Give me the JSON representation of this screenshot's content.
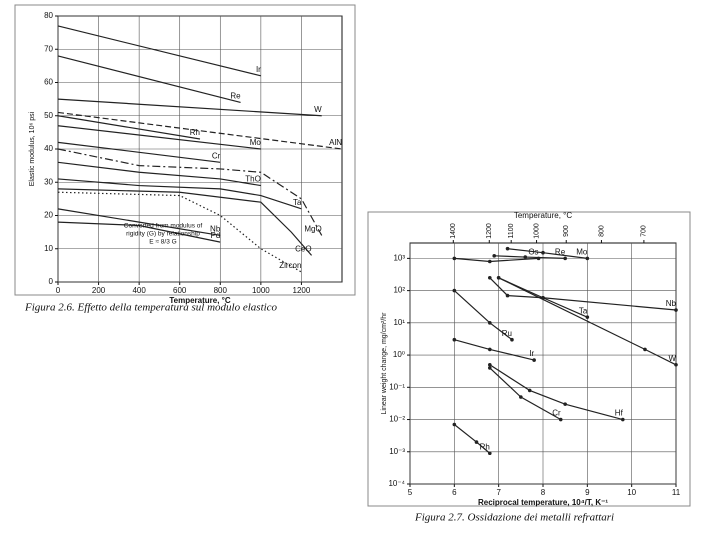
{
  "chart_data": [
    {
      "type": "line",
      "caption": "Figura 2.6. Effetto della temperatura sul  modulo elastico",
      "xlabel": "Temperature, °C",
      "ylabel": "Elastic modulus, 10⁶ psi",
      "xlim": [
        0,
        1400
      ],
      "xticks": [
        0,
        200,
        400,
        600,
        800,
        1000,
        1200
      ],
      "ylim": [
        0,
        80
      ],
      "yticks": [
        0,
        10,
        20,
        30,
        40,
        50,
        60,
        70,
        80
      ],
      "grid": true,
      "markers": false,
      "annotation": [
        "Converted from modulus of",
        "rigidity (G) by relationship",
        "E ≈ 8/3 G"
      ],
      "series": [
        {
          "name": "Ir",
          "color": "#222",
          "style": "solid",
          "x": [
            0,
            1000
          ],
          "values": [
            77,
            62
          ]
        },
        {
          "name": "Re",
          "color": "#222",
          "style": "solid",
          "x": [
            0,
            900
          ],
          "values": [
            68,
            54
          ]
        },
        {
          "name": "W",
          "color": "#222",
          "style": "solid",
          "x": [
            0,
            1300
          ],
          "values": [
            55,
            50
          ]
        },
        {
          "name": "Rh",
          "color": "#222",
          "style": "solid",
          "x": [
            0,
            700
          ],
          "values": [
            50,
            43
          ]
        },
        {
          "name": "AlN",
          "color": "#222",
          "style": "dashed",
          "x": [
            0,
            1400
          ],
          "values": [
            51,
            40
          ]
        },
        {
          "name": "Mo",
          "color": "#222",
          "style": "solid",
          "x": [
            0,
            1000
          ],
          "values": [
            47,
            40
          ]
        },
        {
          "name": "Cr",
          "color": "#222",
          "style": "solid",
          "x": [
            0,
            800
          ],
          "values": [
            42,
            36
          ]
        },
        {
          "name": "ThO",
          "color": "#222",
          "style": "solid",
          "x": [
            0,
            400,
            800,
            1000
          ],
          "values": [
            36,
            33,
            31,
            29
          ]
        },
        {
          "name": "MgO",
          "color": "#222",
          "style": "dash-dot",
          "x": [
            0,
            400,
            800,
            1000,
            1200,
            1300
          ],
          "values": [
            40,
            35,
            34,
            33,
            25,
            14
          ]
        },
        {
          "name": "Ta",
          "color": "#222",
          "style": "solid",
          "x": [
            0,
            400,
            800,
            1000,
            1200
          ],
          "values": [
            31,
            29,
            28,
            26,
            22
          ]
        },
        {
          "name": "CeO",
          "color": "#222",
          "style": "solid",
          "x": [
            0,
            600,
            1000,
            1150,
            1250
          ],
          "values": [
            28,
            27,
            24,
            15,
            8
          ]
        },
        {
          "name": "Zircon",
          "color": "#222",
          "style": "dotted",
          "x": [
            0,
            600,
            800,
            1000,
            1200
          ],
          "values": [
            27,
            26,
            20,
            10,
            3
          ]
        },
        {
          "name": "Nb",
          "color": "#222",
          "style": "solid",
          "x": [
            0,
            400,
            800
          ],
          "values": [
            22,
            18,
            14
          ]
        },
        {
          "name": "Pd",
          "color": "#222",
          "style": "solid",
          "x": [
            0,
            400,
            800
          ],
          "values": [
            18,
            17,
            12
          ]
        }
      ]
    },
    {
      "type": "line",
      "caption": "Figura 2.7. Ossidazione dei metalli refrattari",
      "xlabel": "Reciprocal temperature, 10⁴/T, K⁻¹",
      "ylabel": "Linear weight change, mg/cm²/hr",
      "x2label": "Temperature, °C",
      "x2ticks": [
        1400,
        1200,
        1100,
        1000,
        900,
        800,
        700
      ],
      "xlim": [
        5,
        11
      ],
      "xticks": [
        5,
        6,
        7,
        8,
        9,
        10,
        11
      ],
      "ylim": [
        0.0001,
        3000
      ],
      "ylog": true,
      "grid": true,
      "markers": true,
      "yticks": [
        {
          "value": 0.0001,
          "label": "10⁻⁴"
        },
        {
          "value": 0.001,
          "label": "10⁻³"
        },
        {
          "value": 0.01,
          "label": "10⁻²"
        },
        {
          "value": 0.1,
          "label": "10⁻¹"
        },
        {
          "value": 1,
          "label": "10⁰"
        },
        {
          "value": 10,
          "label": "10¹"
        },
        {
          "value": 100,
          "label": "10²"
        },
        {
          "value": 1000,
          "label": "10³"
        }
      ],
      "series": [
        {
          "name": "Os",
          "color": "#222",
          "style": "solid",
          "x": [
            6,
            6.8,
            7.9
          ],
          "values": [
            1000,
            800,
            1000
          ]
        },
        {
          "name": "Re",
          "color": "#222",
          "style": "solid",
          "x": [
            6.9,
            7.6,
            8.5
          ],
          "values": [
            1200,
            1100,
            1000
          ]
        },
        {
          "name": "Mo",
          "color": "#222",
          "style": "solid",
          "x": [
            7.2,
            8,
            9
          ],
          "values": [
            2000,
            1500,
            1000
          ]
        },
        {
          "name": "Nb",
          "color": "#222",
          "style": "solid",
          "x": [
            6.8,
            7.2,
            8,
            11
          ],
          "values": [
            250,
            70,
            60,
            25
          ]
        },
        {
          "name": "Ta",
          "color": "#222",
          "style": "solid",
          "x": [
            7,
            8,
            9
          ],
          "values": [
            250,
            60,
            15
          ]
        },
        {
          "name": "W",
          "color": "#222",
          "style": "solid",
          "x": [
            7,
            10.3,
            11
          ],
          "values": [
            250,
            1.5,
            0.5
          ]
        },
        {
          "name": "Ru",
          "color": "#222",
          "style": "solid",
          "x": [
            6,
            6.8,
            7.3
          ],
          "values": [
            100,
            10,
            3
          ]
        },
        {
          "name": "Ir",
          "color": "#222",
          "style": "solid",
          "x": [
            6,
            6.8,
            7.8
          ],
          "values": [
            3,
            1.5,
            0.7
          ]
        },
        {
          "name": "Hf",
          "color": "#222",
          "style": "solid",
          "x": [
            6.8,
            7.7,
            8.5,
            9.8
          ],
          "values": [
            0.5,
            0.08,
            0.03,
            0.01
          ]
        },
        {
          "name": "Cr",
          "color": "#222",
          "style": "solid",
          "x": [
            6.8,
            7.5,
            8.4
          ],
          "values": [
            0.4,
            0.05,
            0.01
          ]
        },
        {
          "name": "Rh",
          "color": "#222",
          "style": "solid",
          "x": [
            6,
            6.5,
            6.8
          ],
          "values": [
            0.007,
            0.002,
            0.0009
          ]
        }
      ]
    }
  ]
}
